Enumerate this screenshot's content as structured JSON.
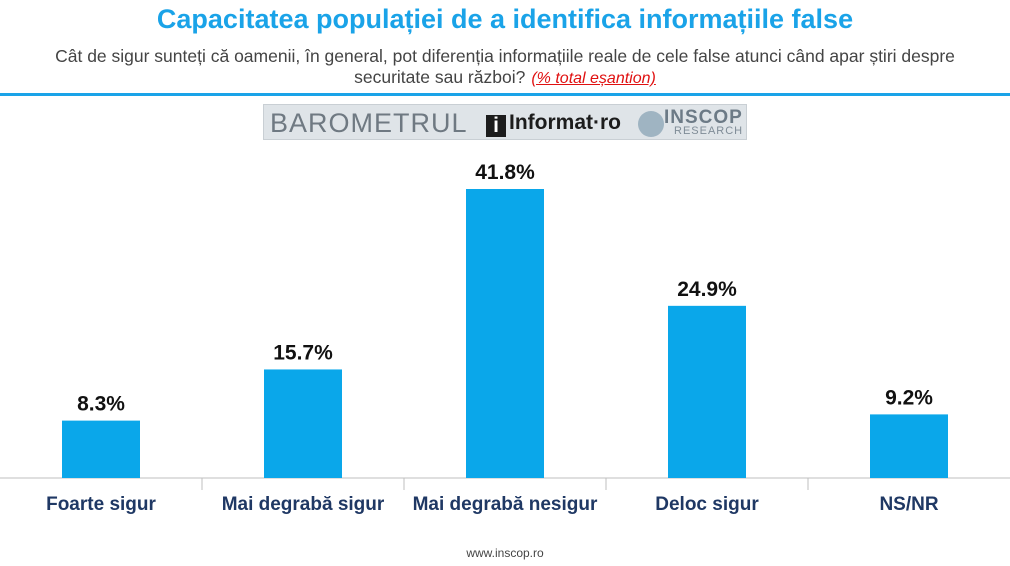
{
  "header": {
    "title": "Capacitatea populației de a identifica informațiile false",
    "subtitle": "Cât de sigur sunteți că oamenii, în general, pot diferenția informațiile reale de cele false atunci când apar știri despre securitate sau război?",
    "subtitle_note": "(% total eșantion)"
  },
  "logos": {
    "barometrul": "BAROMETRUL",
    "informat": "Informat",
    "informat_dot": "·",
    "informat_ro": "ro",
    "inscop_name": "INSCOP",
    "inscop_sub": "RESEARCH"
  },
  "footer": {
    "url": "www.inscop.ro"
  },
  "colors": {
    "accent": "#1aa3e8",
    "bar": "#0aa7ea",
    "subtitle_note": "#e01010"
  },
  "chart_data": {
    "type": "bar",
    "title": "",
    "categories": [
      "Foarte sigur",
      "Mai degrabă sigur",
      "Mai degrabă nesigur",
      "Deloc sigur",
      "NS/NR"
    ],
    "values": [
      8.3,
      15.7,
      41.8,
      24.9,
      9.2
    ],
    "value_labels": [
      "8.3%",
      "15.7%",
      "41.8%",
      "24.9%",
      "9.2%"
    ],
    "ylim": [
      0,
      45
    ],
    "grid": false,
    "legend": "none"
  }
}
